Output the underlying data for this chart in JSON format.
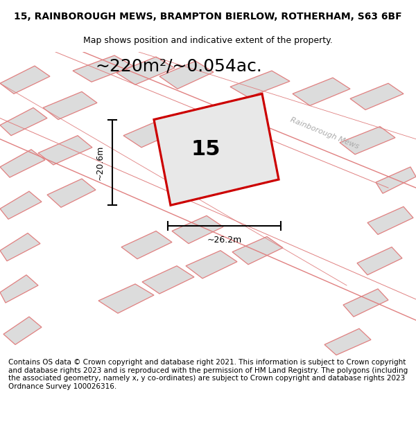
{
  "title_line1": "15, RAINBOROUGH MEWS, BRAMPTON BIERLOW, ROTHERHAM, S63 6BF",
  "title_line2": "Map shows position and indicative extent of the property.",
  "area_label": "~220m²/~0.054ac.",
  "plot_number": "15",
  "width_label": "~26.2m",
  "height_label": "~20.6m",
  "road_label": "Rainborough Mews",
  "footer_text": "Contains OS data © Crown copyright and database right 2021. This information is subject to Crown copyright and database rights 2023 and is reproduced with the permission of HM Land Registry. The polygons (including the associated geometry, namely x, y co-ordinates) are subject to Crown copyright and database rights 2023 Ordnance Survey 100026316.",
  "bg_color": "#f5f5f5",
  "plot_fill": "#e8e8e8",
  "plot_edge_color": "#cc0000",
  "other_plots_fill": "#dcdcdc",
  "other_plots_edge": "#e08080",
  "road_line_color": "#e08080",
  "title_fontsize": 10,
  "subtitle_fontsize": 9,
  "area_fontsize": 18,
  "number_fontsize": 22,
  "footer_fontsize": 7.5
}
